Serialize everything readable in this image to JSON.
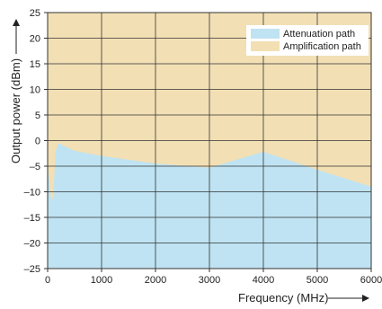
{
  "chart_data": {
    "type": "area",
    "xlabel": "Frequency (MHz)",
    "ylabel": "Output power (dBm)",
    "xlim": [
      0,
      6000
    ],
    "ylim": [
      -25,
      25
    ],
    "x_ticks": [
      "0",
      "1000",
      "2000",
      "3000",
      "4000",
      "5000",
      "6000"
    ],
    "y_ticks": [
      "–25",
      "–20",
      "–15",
      "–10",
      "–5",
      "0",
      "5",
      "10",
      "15",
      "20",
      "25"
    ],
    "grid": true,
    "legend_position": "top-right",
    "series": [
      {
        "name": "Attenuation path",
        "color": "#bfe3f2",
        "region": "below boundary",
        "boundary": [
          {
            "x": 0,
            "y": -5
          },
          {
            "x": 60,
            "y": -11
          },
          {
            "x": 100,
            "y": -11.5
          },
          {
            "x": 150,
            "y": -2
          },
          {
            "x": 200,
            "y": -0.5
          },
          {
            "x": 500,
            "y": -2
          },
          {
            "x": 1000,
            "y": -3
          },
          {
            "x": 2000,
            "y": -4.5
          },
          {
            "x": 3000,
            "y": -5.3
          },
          {
            "x": 4000,
            "y": -2.2
          },
          {
            "x": 5000,
            "y": -5.7
          },
          {
            "x": 6000,
            "y": -9
          }
        ]
      },
      {
        "name": "Amplification path",
        "color": "#f2dfb4",
        "region": "above boundary"
      }
    ]
  }
}
